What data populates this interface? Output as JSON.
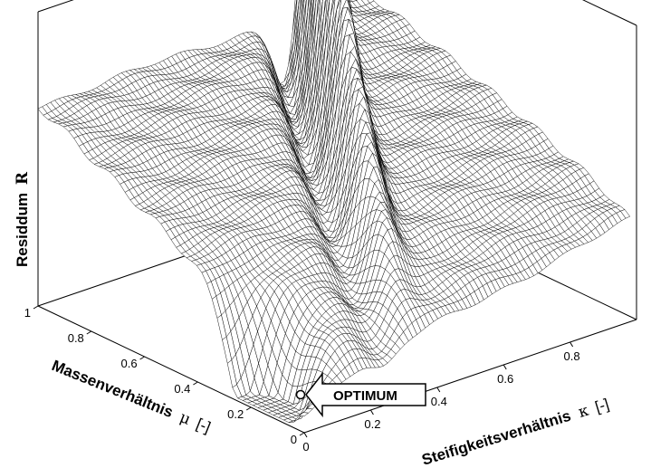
{
  "chart_data": {
    "type": "surface",
    "zlabel_text": "Residdum",
    "zlabel_symbol": "R",
    "xlabel_text": "Massenverhältnis",
    "xlabel_symbol": "μ",
    "xlabel_unit": "[-]",
    "ylabel_text": "Steifigkeitsverhältnis",
    "ylabel_symbol": "κ",
    "ylabel_unit": "[-]",
    "x_ticks": [
      "0",
      "0.2",
      "0.4",
      "0.6",
      "0.8",
      "1"
    ],
    "y_ticks": [
      "0",
      "0.2",
      "0.4",
      "0.6",
      "0.8"
    ],
    "xlim": [
      0,
      1
    ],
    "ylim": [
      0,
      0.95
    ],
    "grid": false,
    "annotation": {
      "label": "OPTIMUM",
      "mu": 0.17,
      "kappa": 0.01
    }
  }
}
